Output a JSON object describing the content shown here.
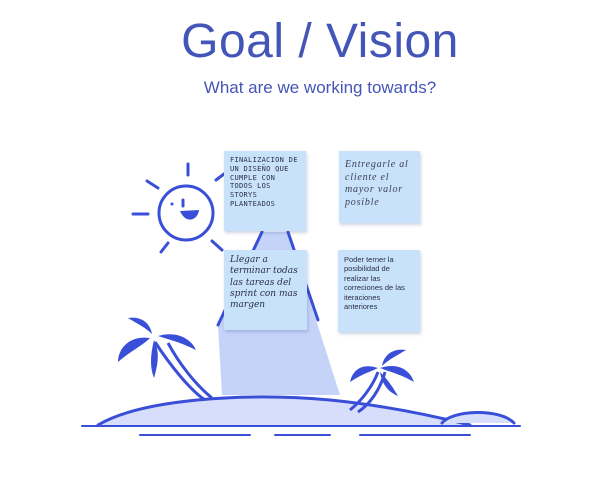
{
  "header": {
    "title": "Goal / Vision",
    "subtitle": "What are we working towards?"
  },
  "notes": [
    {
      "text": "Finalizacion de un diseño que cumple con todos los storys planteados"
    },
    {
      "text": "Entregarle al cliente el mayor valor posible"
    },
    {
      "text": "Llegar a terminar todas las tareas del sprint con mas margen"
    },
    {
      "text": "Poder terner la posibilidad de realizar las correciones de las iteraciones anteriores"
    }
  ],
  "colors": {
    "accent": "#4455b8",
    "line": "#3a4fd8",
    "note": "#c8e2fb",
    "mountain": "#c5d3f8"
  }
}
